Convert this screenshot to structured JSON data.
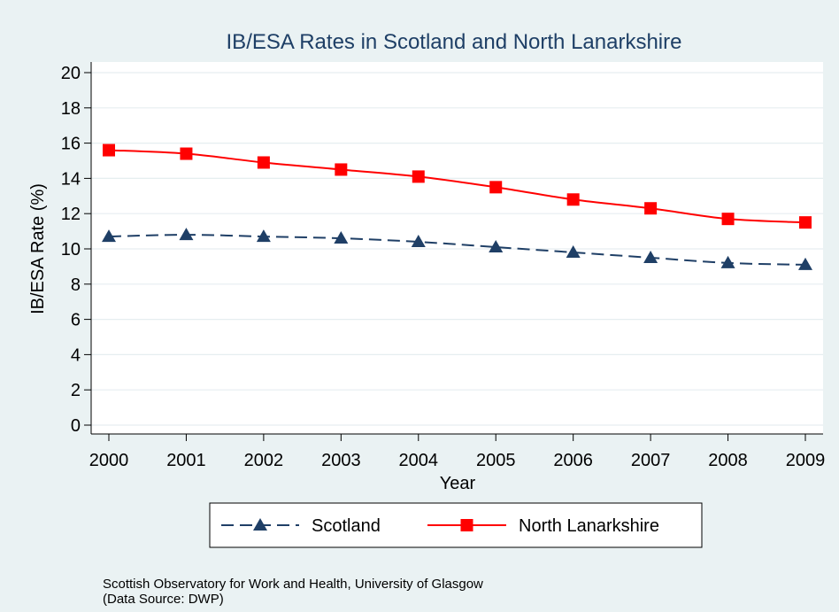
{
  "chart_data": {
    "type": "line",
    "title": "IB/ESA Rates in Scotland and North Lanarkshire",
    "xlabel": "Year",
    "ylabel": "IB/ESA Rate (%)",
    "x": [
      2000,
      2001,
      2002,
      2003,
      2004,
      2005,
      2006,
      2007,
      2008,
      2009
    ],
    "ylim": [
      0,
      20
    ],
    "yticks": [
      0,
      2,
      4,
      6,
      8,
      10,
      12,
      14,
      16,
      18,
      20
    ],
    "grid": true,
    "legend_position": "bottom",
    "series": [
      {
        "name": "Scotland",
        "values": [
          10.7,
          10.8,
          10.7,
          10.6,
          10.4,
          10.1,
          9.8,
          9.5,
          9.2,
          9.1
        ],
        "color": "#1f3f66",
        "marker": "triangle",
        "line_style": "dashed"
      },
      {
        "name": "North Lanarkshire",
        "values": [
          15.6,
          15.4,
          14.9,
          14.5,
          14.1,
          13.5,
          12.8,
          12.3,
          11.7,
          11.5
        ],
        "color": "#ff0000",
        "marker": "square",
        "line_style": "solid"
      }
    ],
    "notes": [
      "Scottish Observatory for Work and Health, University of Glasgow",
      "(Data Source: DWP)"
    ]
  }
}
